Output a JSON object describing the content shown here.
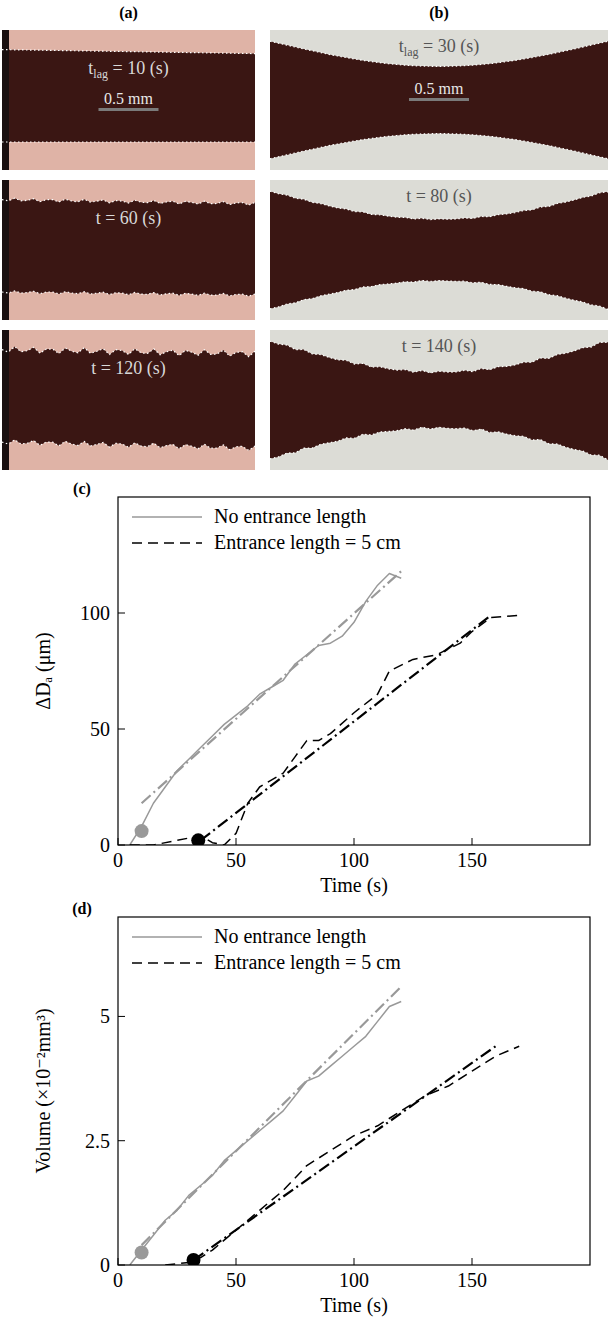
{
  "image_panels": [
    {
      "letter": "(a)",
      "scale_bar": "0.5 mm",
      "frames": [
        {
          "label": "t",
          "label_sub": "lag",
          "label_rest": " = 10 (s)"
        },
        {
          "label": "t = 60 (s)"
        },
        {
          "label": "t = 120 (s)"
        }
      ]
    },
    {
      "letter": "(b)",
      "scale_bar": "0.5 mm",
      "frames": [
        {
          "label": "t",
          "label_sub": "lag",
          "label_rest": " = 30 (s)"
        },
        {
          "label": "t = 80 (s)"
        },
        {
          "label": "t = 140 (s)"
        }
      ]
    }
  ],
  "chart_data": [
    {
      "type": "line",
      "title": "(c)",
      "xlabel": "Time (s)",
      "ylabel": "ΔDₐ (μm)",
      "xlim": [
        0,
        200
      ],
      "xticks": [
        0,
        50,
        100,
        150
      ],
      "ylim": [
        0,
        150
      ],
      "yticks": [
        0,
        50,
        100
      ],
      "grid": false,
      "legend": "upper left",
      "series": [
        {
          "name": "No entrance length",
          "type": "line",
          "color": "#999999",
          "line_style": "solid",
          "x": [
            5,
            10,
            15,
            20,
            25,
            30,
            35,
            40,
            45,
            50,
            55,
            60,
            65,
            70,
            75,
            80,
            85,
            90,
            95,
            100,
            105,
            110,
            115,
            120
          ],
          "values": [
            0,
            8,
            18,
            25,
            32,
            37,
            42,
            47,
            52,
            56,
            60,
            65,
            68,
            71,
            78,
            82,
            86,
            87,
            90,
            96,
            105,
            112,
            117,
            115
          ]
        },
        {
          "name": "Entrance length = 5 cm",
          "type": "line",
          "color": "#000000",
          "line_style": "dashed",
          "x": [
            5,
            15,
            25,
            30,
            35,
            40,
            45,
            50,
            55,
            60,
            70,
            75,
            80,
            85,
            90,
            100,
            110,
            115,
            125,
            135,
            145,
            150,
            158,
            170
          ],
          "values": [
            0,
            0,
            2,
            3,
            4,
            1,
            0,
            5,
            18,
            25,
            31,
            38,
            45,
            45,
            48,
            57,
            65,
            75,
            80,
            82,
            87,
            92,
            98,
            99
          ]
        },
        {
          "type": "line",
          "color": "#999999",
          "line_style": "dashdot",
          "x": [
            10,
            120
          ],
          "values": [
            18,
            118
          ]
        },
        {
          "type": "line",
          "color": "#000000",
          "line_style": "dashdot",
          "x": [
            35,
            158
          ],
          "values": [
            2,
            99
          ]
        },
        {
          "type": "scatter",
          "color": "#999999",
          "marker": "circle",
          "x": [
            10
          ],
          "values": [
            6
          ]
        },
        {
          "type": "scatter",
          "color": "#000000",
          "marker": "circle",
          "x": [
            34
          ],
          "values": [
            2
          ]
        }
      ]
    },
    {
      "type": "line",
      "title": "(d)",
      "xlabel": "Time (s)",
      "ylabel": "Volume (×10⁻²mm³)",
      "xlim": [
        0,
        200
      ],
      "xticks": [
        0,
        50,
        100,
        150
      ],
      "ylim": [
        0,
        7
      ],
      "yticks": [
        0,
        2.5,
        5
      ],
      "grid": false,
      "legend": "upper left",
      "series": [
        {
          "name": "No entrance length",
          "type": "line",
          "color": "#999999",
          "line_style": "solid",
          "x": [
            5,
            10,
            15,
            20,
            25,
            30,
            35,
            40,
            45,
            50,
            55,
            60,
            65,
            70,
            75,
            80,
            85,
            90,
            95,
            100,
            105,
            110,
            115,
            120
          ],
          "values": [
            0,
            0.3,
            0.6,
            0.9,
            1.1,
            1.4,
            1.6,
            1.8,
            2.1,
            2.3,
            2.5,
            2.7,
            2.9,
            3.1,
            3.4,
            3.7,
            3.8,
            4.0,
            4.2,
            4.4,
            4.6,
            4.9,
            5.2,
            5.3
          ]
        },
        {
          "name": "Entrance length = 5 cm",
          "type": "line",
          "color": "#000000",
          "line_style": "dashed",
          "x": [
            20,
            30,
            35,
            40,
            45,
            50,
            60,
            70,
            80,
            90,
            100,
            110,
            120,
            130,
            140,
            150,
            160,
            170
          ],
          "values": [
            0,
            0.05,
            0.15,
            0.3,
            0.5,
            0.7,
            1.1,
            1.5,
            2.0,
            2.3,
            2.6,
            2.8,
            3.1,
            3.4,
            3.6,
            3.9,
            4.2,
            4.4
          ]
        },
        {
          "type": "line",
          "color": "#999999",
          "line_style": "dashdot",
          "x": [
            10,
            120
          ],
          "values": [
            0.4,
            5.6
          ]
        },
        {
          "type": "line",
          "color": "#000000",
          "line_style": "dashdot",
          "x": [
            32,
            160
          ],
          "values": [
            0.1,
            4.4
          ]
        },
        {
          "type": "scatter",
          "color": "#999999",
          "marker": "circle",
          "x": [
            10
          ],
          "values": [
            0.25
          ]
        },
        {
          "type": "scatter",
          "color": "#000000",
          "marker": "circle",
          "x": [
            32
          ],
          "values": [
            0.1
          ]
        }
      ]
    }
  ]
}
